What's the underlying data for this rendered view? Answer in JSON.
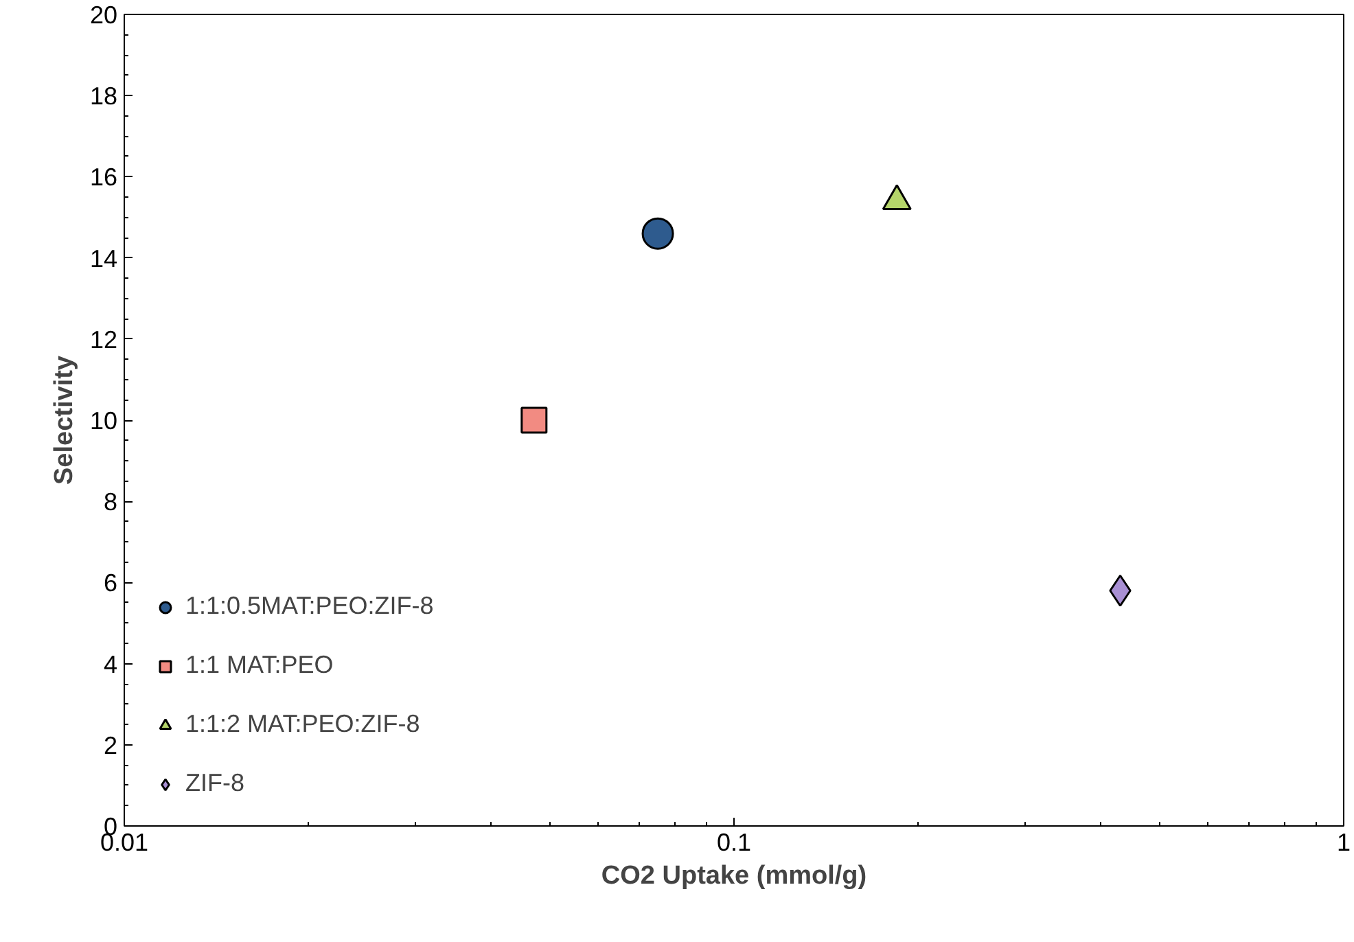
{
  "chart_data": {
    "type": "scatter",
    "xlabel": "CO2 Uptake (mmol/g)",
    "ylabel": "Selectivity",
    "log": "x",
    "xlim": [
      0.01,
      1
    ],
    "xticks": [
      0.01,
      0.1,
      1
    ],
    "ylim": [
      0,
      20
    ],
    "yticks": [
      0,
      2,
      4,
      6,
      8,
      10,
      12,
      14,
      16,
      18,
      20
    ],
    "grid": false,
    "legend": "bottom left",
    "series": [
      {
        "name": "1:1:0.5MAT:PEO:ZIF-8",
        "color": "#2e5b8e",
        "marker": "circle",
        "x": [
          0.075
        ],
        "values": [
          14.6
        ]
      },
      {
        "name": "1:1 MAT:PEO",
        "color": "#f28b82",
        "marker": "square",
        "x": [
          0.047
        ],
        "values": [
          10.0
        ]
      },
      {
        "name": "1:1:2 MAT:PEO:ZIF-8",
        "color": "#b5d56a",
        "marker": "triangle",
        "x": [
          0.185
        ],
        "values": [
          15.4
        ]
      },
      {
        "name": "ZIF-8",
        "color": "#a990d4",
        "marker": "diamond",
        "x": [
          0.43
        ],
        "values": [
          5.8
        ]
      }
    ]
  }
}
